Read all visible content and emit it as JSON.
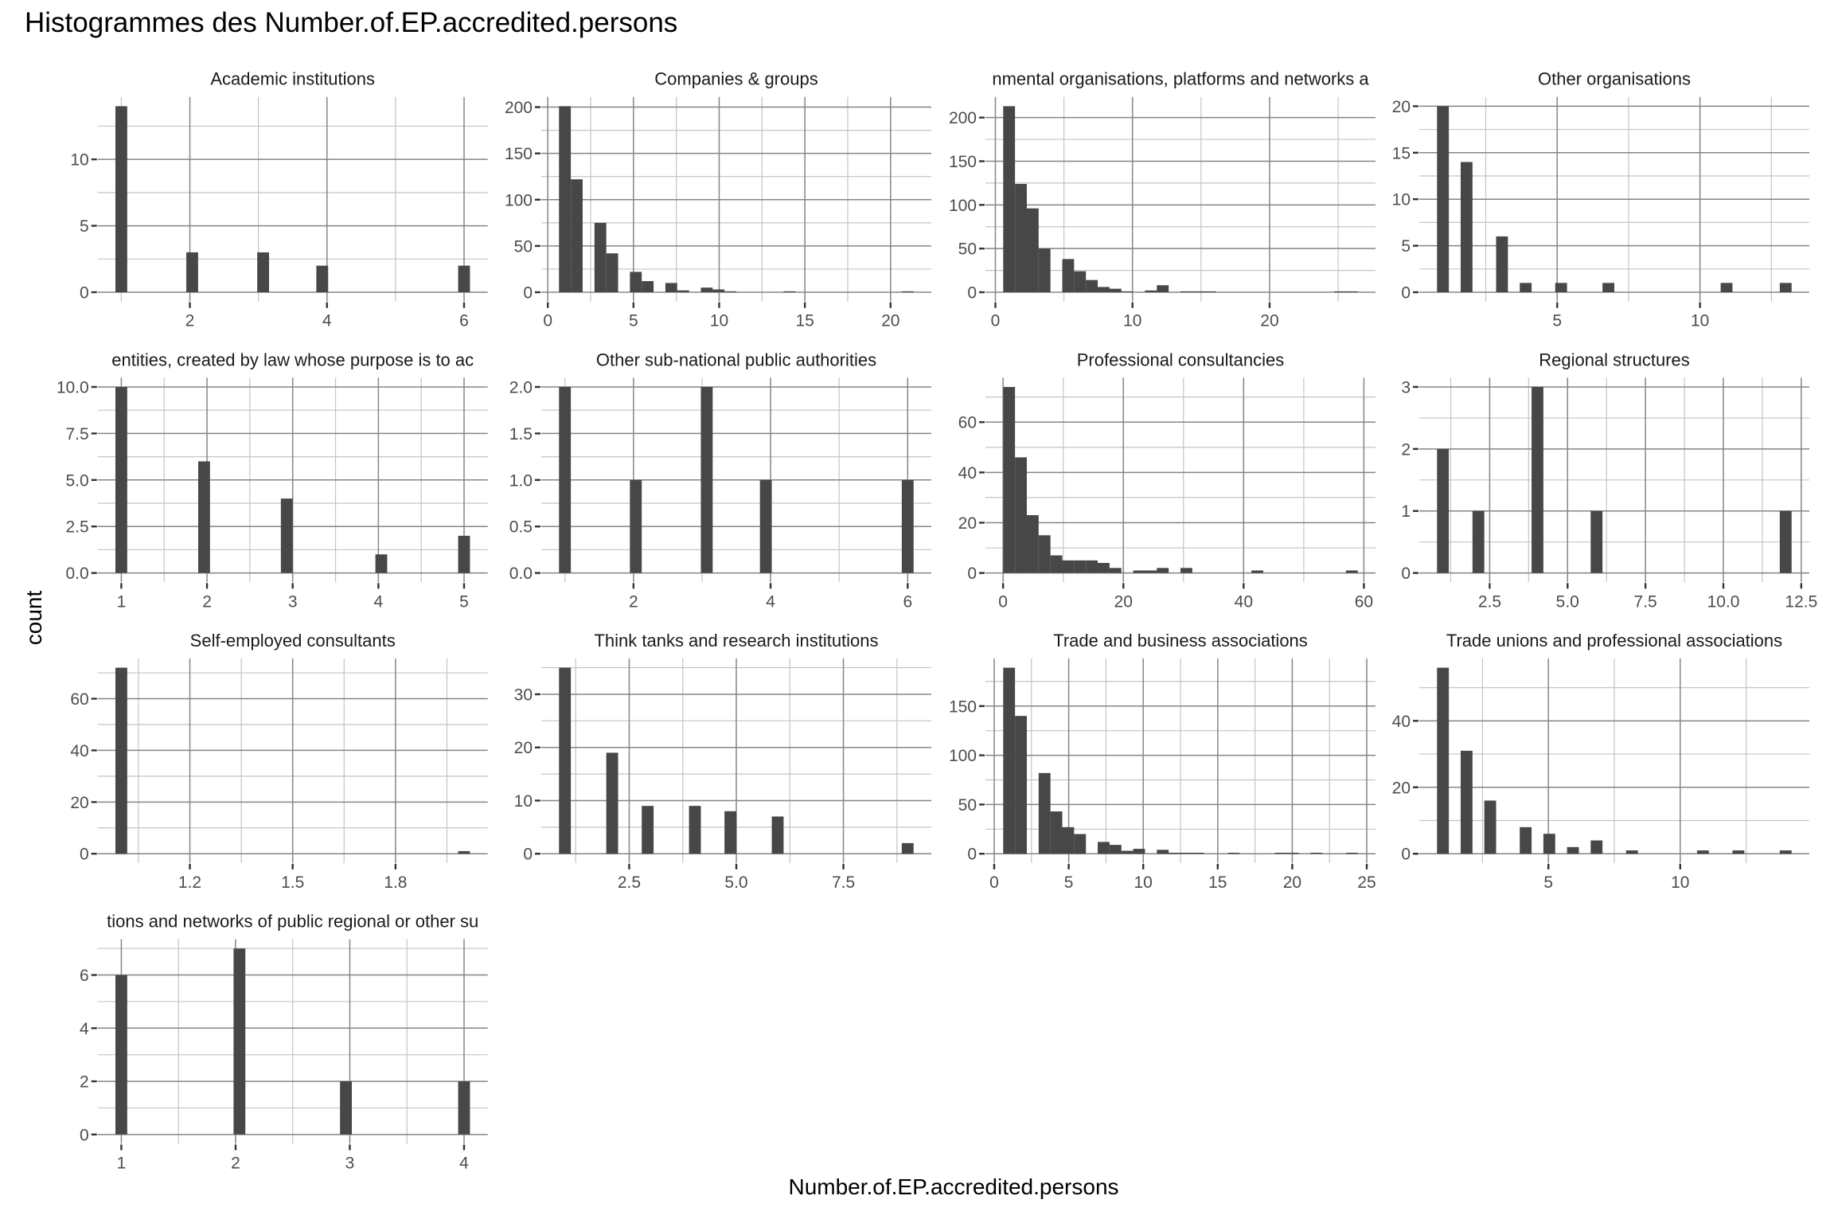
{
  "chart_data": {
    "type": "bar",
    "title": "Histogrammes des Number.of.EP.accredited.persons",
    "xlabel": "Number.of.EP.accredited.persons",
    "ylabel": "count",
    "grid": true,
    "legend": "none",
    "bins_per_panel": 30,
    "colors": {
      "bar": "#474747",
      "grid_major": "#858585",
      "grid_minor": "#c4c4c4",
      "tick_mark": "#333333",
      "background": "#ffffff"
    },
    "panels": [
      {
        "title": "Academic institutions",
        "binwidth": 0.1724,
        "xlim": [
          0.655,
          6.345
        ],
        "ylim": [
          -0.7,
          14.7
        ],
        "x_ticks": [
          2,
          4,
          6
        ],
        "x_tick_labels": [
          "2",
          "4",
          "6"
        ],
        "y_ticks": [
          0,
          5,
          10
        ],
        "y_tick_labels": [
          "0",
          "5",
          "10"
        ],
        "bins": [
          {
            "x": 1,
            "count": 14
          },
          {
            "x": 2.034,
            "count": 3
          },
          {
            "x": 3.069,
            "count": 3
          },
          {
            "x": 3.931,
            "count": 2
          },
          {
            "x": 6,
            "count": 2
          }
        ]
      },
      {
        "title": "Companies & groups",
        "binwidth": 0.6897,
        "xlim": [
          -0.379,
          22.379
        ],
        "ylim": [
          -10.05,
          211.05
        ],
        "x_ticks": [
          0,
          5,
          10,
          15,
          20
        ],
        "x_tick_labels": [
          "0",
          "5",
          "10",
          "15",
          "20"
        ],
        "y_ticks": [
          0,
          50,
          100,
          150,
          200
        ],
        "y_tick_labels": [
          "0",
          "50",
          "100",
          "150",
          "200"
        ],
        "bins": [
          {
            "x": 1,
            "count": 201
          },
          {
            "x": 1.69,
            "count": 122
          },
          {
            "x": 3.069,
            "count": 75
          },
          {
            "x": 3.759,
            "count": 42
          },
          {
            "x": 5.138,
            "count": 22
          },
          {
            "x": 5.828,
            "count": 12
          },
          {
            "x": 7.207,
            "count": 10
          },
          {
            "x": 7.897,
            "count": 2
          },
          {
            "x": 9.276,
            "count": 5
          },
          {
            "x": 9.966,
            "count": 3
          },
          {
            "x": 10.655,
            "count": 1
          },
          {
            "x": 14.103,
            "count": 1
          },
          {
            "x": 21,
            "count": 1
          }
        ]
      },
      {
        "title": "nmental organisations, platforms and networks a",
        "binwidth": 0.8621,
        "xlim": [
          -0.724,
          27.724
        ],
        "ylim": [
          -10.65,
          223.65
        ],
        "x_ticks": [
          0,
          10,
          20
        ],
        "x_tick_labels": [
          "0",
          "10",
          "20"
        ],
        "y_ticks": [
          0,
          50,
          100,
          150,
          200
        ],
        "y_tick_labels": [
          "0",
          "50",
          "100",
          "150",
          "200"
        ],
        "bins": [
          {
            "x": 1,
            "count": 213
          },
          {
            "x": 1.862,
            "count": 124
          },
          {
            "x": 2.724,
            "count": 96
          },
          {
            "x": 3.586,
            "count": 50
          },
          {
            "x": 5.31,
            "count": 38
          },
          {
            "x": 6.172,
            "count": 24
          },
          {
            "x": 7.034,
            "count": 14
          },
          {
            "x": 7.897,
            "count": 6
          },
          {
            "x": 8.759,
            "count": 4
          },
          {
            "x": 9.621,
            "count": 1
          },
          {
            "x": 11.345,
            "count": 2
          },
          {
            "x": 12.207,
            "count": 8
          },
          {
            "x": 13.931,
            "count": 1
          },
          {
            "x": 14.793,
            "count": 1
          },
          {
            "x": 15.655,
            "count": 1
          },
          {
            "x": 25.138,
            "count": 1
          },
          {
            "x": 26,
            "count": 1
          }
        ]
      },
      {
        "title": "Other organisations",
        "binwidth": 0.4138,
        "xlim": [
          0.172,
          13.828
        ],
        "ylim": [
          -1,
          21
        ],
        "x_ticks": [
          5,
          10
        ],
        "x_tick_labels": [
          "5",
          "10"
        ],
        "y_ticks": [
          0,
          5,
          10,
          15,
          20
        ],
        "y_tick_labels": [
          "0",
          "5",
          "10",
          "15",
          "20"
        ],
        "bins": [
          {
            "x": 1,
            "count": 20
          },
          {
            "x": 1.828,
            "count": 14
          },
          {
            "x": 3.069,
            "count": 6
          },
          {
            "x": 3.897,
            "count": 1
          },
          {
            "x": 5.138,
            "count": 1
          },
          {
            "x": 6.793,
            "count": 1
          },
          {
            "x": 10.931,
            "count": 1
          },
          {
            "x": 13,
            "count": 1
          }
        ]
      },
      {
        "title": "entities, created by law whose purpose is to ac",
        "binwidth": 0.1379,
        "xlim": [
          0.724,
          5.276
        ],
        "ylim": [
          -0.5,
          10.5
        ],
        "x_ticks": [
          1,
          2,
          3,
          4,
          5
        ],
        "x_tick_labels": [
          "1",
          "2",
          "3",
          "4",
          "5"
        ],
        "y_ticks": [
          0,
          2.5,
          5,
          7.5,
          10
        ],
        "y_tick_labels": [
          "0.0",
          "2.5",
          "5.0",
          "7.5",
          "10.0"
        ],
        "bins": [
          {
            "x": 1,
            "count": 10
          },
          {
            "x": 1.966,
            "count": 6
          },
          {
            "x": 2.931,
            "count": 4
          },
          {
            "x": 4.034,
            "count": 1
          },
          {
            "x": 5,
            "count": 2
          }
        ]
      },
      {
        "title": "Other sub-national public authorities",
        "binwidth": 0.1724,
        "xlim": [
          0.655,
          6.345
        ],
        "ylim": [
          -0.1,
          2.1
        ],
        "x_ticks": [
          2,
          4,
          6
        ],
        "x_tick_labels": [
          "2",
          "4",
          "6"
        ],
        "y_ticks": [
          0,
          0.5,
          1,
          1.5,
          2
        ],
        "y_tick_labels": [
          "0.0",
          "0.5",
          "1.0",
          "1.5",
          "2.0"
        ],
        "bins": [
          {
            "x": 1,
            "count": 2
          },
          {
            "x": 2.034,
            "count": 1
          },
          {
            "x": 3.069,
            "count": 2
          },
          {
            "x": 3.931,
            "count": 1
          },
          {
            "x": 6,
            "count": 1
          }
        ]
      },
      {
        "title": "Professional consultancies",
        "binwidth": 1.9655,
        "xlim": [
          -2.931,
          61.931
        ],
        "ylim": [
          -3.7,
          77.7
        ],
        "x_ticks": [
          0,
          20,
          40,
          60
        ],
        "x_tick_labels": [
          "0",
          "20",
          "40",
          "60"
        ],
        "y_ticks": [
          0,
          20,
          40,
          60
        ],
        "y_tick_labels": [
          "0",
          "20",
          "40",
          "60"
        ],
        "bins": [
          {
            "x": 1,
            "count": 74
          },
          {
            "x": 2.966,
            "count": 46
          },
          {
            "x": 4.931,
            "count": 23
          },
          {
            "x": 6.897,
            "count": 15
          },
          {
            "x": 8.862,
            "count": 7
          },
          {
            "x": 10.828,
            "count": 5
          },
          {
            "x": 12.793,
            "count": 5
          },
          {
            "x": 14.759,
            "count": 5
          },
          {
            "x": 16.724,
            "count": 4
          },
          {
            "x": 18.69,
            "count": 2
          },
          {
            "x": 22.621,
            "count": 1
          },
          {
            "x": 24.586,
            "count": 1
          },
          {
            "x": 26.552,
            "count": 2
          },
          {
            "x": 30.483,
            "count": 2
          },
          {
            "x": 42.276,
            "count": 1
          },
          {
            "x": 58,
            "count": 1
          }
        ]
      },
      {
        "title": "Regional structures",
        "binwidth": 0.3793,
        "xlim": [
          0.241,
          12.759
        ],
        "ylim": [
          -0.15,
          3.15
        ],
        "x_ticks": [
          2.5,
          5,
          7.5,
          10,
          12.5
        ],
        "x_tick_labels": [
          "2.5",
          "5.0",
          "7.5",
          "10.0",
          "12.5"
        ],
        "y_ticks": [
          0,
          1,
          2,
          3
        ],
        "y_tick_labels": [
          "0",
          "1",
          "2",
          "3"
        ],
        "bins": [
          {
            "x": 1,
            "count": 2
          },
          {
            "x": 2.138,
            "count": 1
          },
          {
            "x": 4.034,
            "count": 3
          },
          {
            "x": 5.931,
            "count": 1
          },
          {
            "x": 12,
            "count": 1
          }
        ]
      },
      {
        "title": "Self-employed consultants",
        "binwidth": 0.0345,
        "xlim": [
          0.931,
          2.069
        ],
        "ylim": [
          -3.6,
          75.6
        ],
        "x_ticks": [
          1.2,
          1.5,
          1.8
        ],
        "x_tick_labels": [
          "1.2",
          "1.5",
          "1.8"
        ],
        "y_ticks": [
          0,
          20,
          40,
          60
        ],
        "y_tick_labels": [
          "0",
          "20",
          "40",
          "60"
        ],
        "bins": [
          {
            "x": 1,
            "count": 72
          },
          {
            "x": 2,
            "count": 1
          }
        ]
      },
      {
        "title": "Think tanks and research institutions",
        "binwidth": 0.2759,
        "xlim": [
          0.448,
          9.552
        ],
        "ylim": [
          -1.75,
          36.75
        ],
        "x_ticks": [
          2.5,
          5,
          7.5
        ],
        "x_tick_labels": [
          "2.5",
          "5.0",
          "7.5"
        ],
        "y_ticks": [
          0,
          10,
          20,
          30
        ],
        "y_tick_labels": [
          "0",
          "10",
          "20",
          "30"
        ],
        "bins": [
          {
            "x": 1,
            "count": 35
          },
          {
            "x": 2.103,
            "count": 19
          },
          {
            "x": 2.931,
            "count": 9
          },
          {
            "x": 4.034,
            "count": 9
          },
          {
            "x": 4.862,
            "count": 8
          },
          {
            "x": 5.966,
            "count": 7
          },
          {
            "x": 9,
            "count": 2
          }
        ]
      },
      {
        "title": "Trade and business associations",
        "binwidth": 0.7931,
        "xlim": [
          -0.586,
          25.586
        ],
        "ylim": [
          -9.45,
          198.45
        ],
        "x_ticks": [
          0,
          5,
          10,
          15,
          20,
          25
        ],
        "x_tick_labels": [
          "0",
          "5",
          "10",
          "15",
          "20",
          "25"
        ],
        "y_ticks": [
          0,
          50,
          100,
          150
        ],
        "y_tick_labels": [
          "0",
          "50",
          "100",
          "150"
        ],
        "bins": [
          {
            "x": 1,
            "count": 189
          },
          {
            "x": 1.793,
            "count": 140
          },
          {
            "x": 3.379,
            "count": 82
          },
          {
            "x": 4.172,
            "count": 43
          },
          {
            "x": 4.966,
            "count": 27
          },
          {
            "x": 5.759,
            "count": 20
          },
          {
            "x": 7.345,
            "count": 12
          },
          {
            "x": 8.138,
            "count": 9
          },
          {
            "x": 8.931,
            "count": 3
          },
          {
            "x": 9.724,
            "count": 5
          },
          {
            "x": 11.31,
            "count": 4
          },
          {
            "x": 12.103,
            "count": 1
          },
          {
            "x": 12.897,
            "count": 1
          },
          {
            "x": 13.69,
            "count": 1
          },
          {
            "x": 16.069,
            "count": 1
          },
          {
            "x": 19.241,
            "count": 1
          },
          {
            "x": 20.034,
            "count": 1
          },
          {
            "x": 21.621,
            "count": 1
          },
          {
            "x": 24,
            "count": 1
          }
        ]
      },
      {
        "title": "Trade unions and professional associations",
        "binwidth": 0.4483,
        "xlim": [
          0.103,
          14.897
        ],
        "ylim": [
          -2.8,
          58.8
        ],
        "x_ticks": [
          5,
          10
        ],
        "x_tick_labels": [
          "5",
          "10"
        ],
        "y_ticks": [
          0,
          20,
          40
        ],
        "y_tick_labels": [
          "0",
          "20",
          "40"
        ],
        "bins": [
          {
            "x": 1,
            "count": 56
          },
          {
            "x": 1.897,
            "count": 31
          },
          {
            "x": 2.793,
            "count": 16
          },
          {
            "x": 4.138,
            "count": 8
          },
          {
            "x": 5.034,
            "count": 6
          },
          {
            "x": 5.931,
            "count": 2
          },
          {
            "x": 6.828,
            "count": 4
          },
          {
            "x": 8.172,
            "count": 1
          },
          {
            "x": 10.862,
            "count": 1
          },
          {
            "x": 12.207,
            "count": 1
          },
          {
            "x": 14,
            "count": 1
          }
        ]
      },
      {
        "title": "tions and networks of public regional or other su",
        "binwidth": 0.1034,
        "xlim": [
          0.793,
          4.207
        ],
        "ylim": [
          -0.35,
          7.35
        ],
        "x_ticks": [
          1,
          2,
          3,
          4
        ],
        "x_tick_labels": [
          "1",
          "2",
          "3",
          "4"
        ],
        "y_ticks": [
          0,
          2,
          4,
          6
        ],
        "y_tick_labels": [
          "0",
          "2",
          "4",
          "6"
        ],
        "bins": [
          {
            "x": 1,
            "count": 6
          },
          {
            "x": 2.034,
            "count": 7
          },
          {
            "x": 2.966,
            "count": 2
          },
          {
            "x": 4,
            "count": 2
          }
        ]
      }
    ]
  }
}
